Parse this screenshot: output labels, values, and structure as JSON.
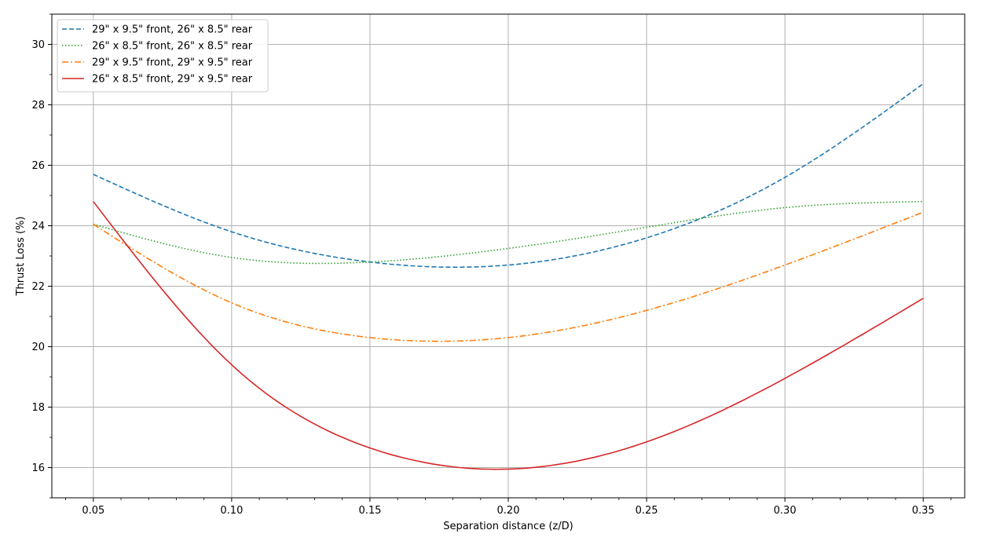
{
  "chart_data": {
    "type": "line",
    "title": "",
    "xlabel": "Separation distance (z/D)",
    "ylabel": "Thrust Loss (%)",
    "xlim": [
      0.035,
      0.365
    ],
    "ylim": [
      15.0,
      31.0
    ],
    "x_ticks": [
      "0.05",
      "0.10",
      "0.15",
      "0.20",
      "0.25",
      "0.30",
      "0.35"
    ],
    "y_ticks": [
      "16",
      "18",
      "20",
      "22",
      "24",
      "26",
      "28",
      "30"
    ],
    "grid": true,
    "legend_position": "upper left",
    "x": [
      0.05,
      0.1,
      0.15,
      0.2,
      0.25,
      0.3,
      0.35
    ],
    "series": [
      {
        "name": "29\" x 9.5\" front, 26\" x 8.5\" rear",
        "style": "dashed",
        "color": "#1f77b4",
        "values": [
          25.7,
          23.8,
          22.8,
          22.7,
          23.6,
          25.6,
          28.7
        ]
      },
      {
        "name": "26\" x 8.5\" front, 26\" x 8.5\" rear",
        "style": "dotted",
        "color": "#2ca02c",
        "values": [
          24.05,
          22.95,
          22.8,
          23.25,
          23.95,
          24.6,
          24.8
        ]
      },
      {
        "name": "29\" x 9.5\" front, 29\" x 9.5\" rear",
        "style": "dashdot",
        "color": "#ff7f0e",
        "values": [
          24.05,
          21.45,
          20.3,
          20.3,
          21.2,
          22.7,
          24.45
        ]
      },
      {
        "name": "26\" x 8.5\" front, 29\" x 9.5\" rear",
        "style": "solid",
        "color": "#d62728",
        "values": [
          24.8,
          19.4,
          16.65,
          15.95,
          16.85,
          18.95,
          21.6
        ]
      }
    ]
  }
}
